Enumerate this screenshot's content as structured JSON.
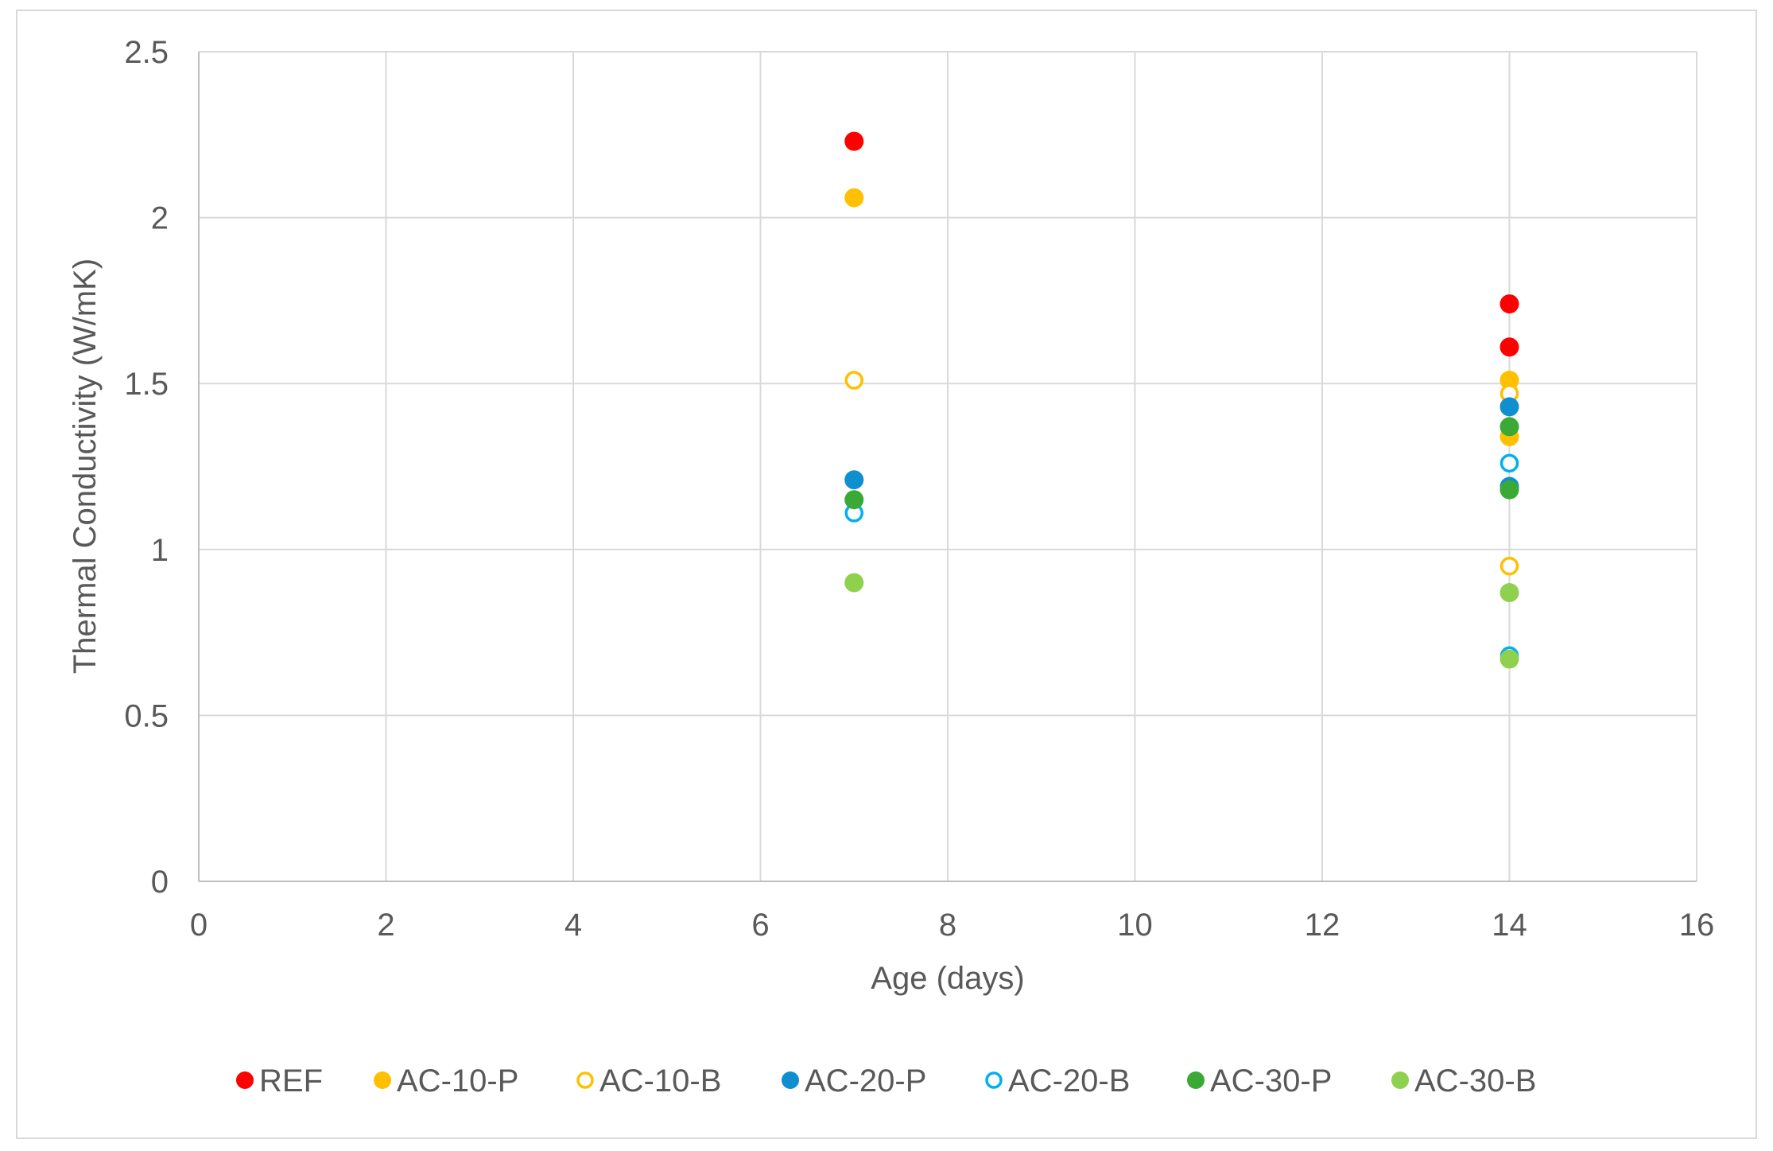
{
  "chart_data": {
    "type": "scatter",
    "title": "",
    "xlabel": "Age (days)",
    "ylabel": "Thermal Conductivity (W/mK)",
    "xlim": [
      0,
      16
    ],
    "ylim": [
      0,
      2.5
    ],
    "xticks": [
      "0",
      "2",
      "4",
      "6",
      "8",
      "10",
      "12",
      "14",
      "16"
    ],
    "yticks": [
      "0",
      "0.5",
      "1",
      "1.5",
      "2",
      "2.5"
    ],
    "grid": true,
    "legend_position": "bottom",
    "series": [
      {
        "name": "REF",
        "color": "#ff0000",
        "filled": true,
        "points": [
          [
            7,
            2.23
          ],
          [
            14,
            1.74
          ],
          [
            14,
            1.61
          ]
        ]
      },
      {
        "name": "AC-10-P",
        "color": "#ffc000",
        "filled": true,
        "points": [
          [
            7,
            2.06
          ],
          [
            14,
            1.51
          ],
          [
            14,
            1.34
          ]
        ]
      },
      {
        "name": "AC-10-B",
        "color": "#ffc000",
        "filled": false,
        "points": [
          [
            7,
            1.51
          ],
          [
            14,
            1.47
          ],
          [
            14,
            0.95
          ]
        ]
      },
      {
        "name": "AC-20-P",
        "color": "#0f8fd0",
        "filled": true,
        "points": [
          [
            7,
            1.21
          ],
          [
            14,
            1.43
          ],
          [
            14,
            1.19
          ]
        ]
      },
      {
        "name": "AC-20-B",
        "color": "#00b0f0",
        "filled": false,
        "points": [
          [
            7,
            1.11
          ],
          [
            14,
            1.26
          ],
          [
            14,
            0.68
          ]
        ]
      },
      {
        "name": "AC-30-P",
        "color": "#3aa935",
        "filled": true,
        "points": [
          [
            7,
            1.15
          ],
          [
            14,
            1.37
          ],
          [
            14,
            1.18
          ]
        ]
      },
      {
        "name": "AC-30-B",
        "color": "#8fd14f",
        "filled": true,
        "points": [
          [
            7,
            0.9
          ],
          [
            14,
            0.87
          ],
          [
            14,
            0.67
          ]
        ]
      }
    ]
  }
}
